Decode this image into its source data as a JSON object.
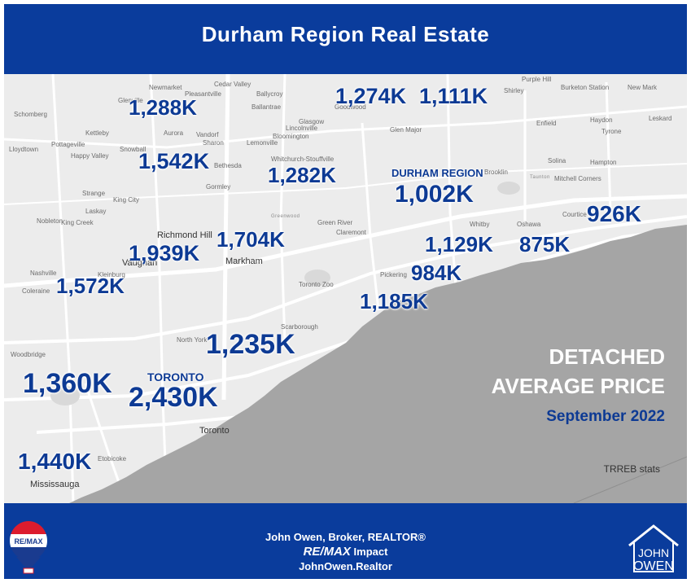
{
  "header": {
    "title": "Durham Region Real Estate"
  },
  "map": {
    "place_names": [
      "Cedar Valley",
      "Newmarket",
      "Pleasantville",
      "Glenville",
      "Schomberg",
      "Kettleby",
      "Pottageville",
      "Aurora",
      "Happy Valley",
      "Lloydtown",
      "Snowball",
      "King City",
      "Richmond Hill",
      "Vaughan",
      "Markham",
      "Nashville",
      "Kleinburg",
      "Toronto",
      "Mississauga",
      "Etobicoke",
      "Scarborough",
      "North York",
      "Pickering",
      "Whitby",
      "Oshawa",
      "Courtice",
      "Brooklin",
      "Goodwood",
      "Glasgow",
      "Lincolnville",
      "Ballantrae",
      "Bloomington",
      "Whitchurch-Stouffville",
      "Greenwood",
      "Green River",
      "Solina",
      "Hampton",
      "Enfield",
      "Shirley",
      "Burketon Station",
      "Purple Hill",
      "New Mark",
      "Tyrone",
      "Leskard",
      "Haydon",
      "Mitchell Corners",
      "Taunton",
      "Glen Major",
      "Coleraine",
      "Woodbridge",
      "Strange",
      "Laskay",
      "Nobleton",
      "King Creek",
      "Ballycroy",
      "Sharon",
      "Gormley",
      "Bethesda",
      "Lemonville",
      "Vandorf",
      "Toronto Zoo",
      "Claremont"
    ],
    "region_label": "DURHAM REGION",
    "city_label": "TORONTO",
    "prices": [
      {
        "label": "1,274K"
      },
      {
        "label": "1,111K"
      },
      {
        "label": "1,288K"
      },
      {
        "label": "1,542K"
      },
      {
        "label": "1,282K"
      },
      {
        "label": "1,002K"
      },
      {
        "label": "926K"
      },
      {
        "label": "1,704K"
      },
      {
        "label": "1,939K"
      },
      {
        "label": "1,129K"
      },
      {
        "label": "875K"
      },
      {
        "label": "984K"
      },
      {
        "label": "1,572K"
      },
      {
        "label": "1,185K"
      },
      {
        "label": "1,235K"
      },
      {
        "label": "1,360K"
      },
      {
        "label": "2,430K"
      },
      {
        "label": "1,440K"
      }
    ],
    "colors": {
      "price": "#0d3a94",
      "land": "#ececec",
      "water": "#a5a5a5",
      "roads": "#ffffff"
    }
  },
  "panel": {
    "title_line1": "DETACHED",
    "title_line2": "AVERAGE PRICE",
    "date": "September 2022",
    "source": "TRREB stats"
  },
  "footer": {
    "line1": "John Owen, Broker, REALTOR®",
    "line2_brand": "RE/MAX",
    "line2_rest": "Impact",
    "line3": "JohnOwen.Realtor",
    "balloon_text": "RE/MAX",
    "logo_line1": "JOHN",
    "logo_line2": "OWEN"
  },
  "brand_colors": {
    "blue": "#0a3c9c",
    "red": "#dc1c2e",
    "white": "#ffffff"
  }
}
